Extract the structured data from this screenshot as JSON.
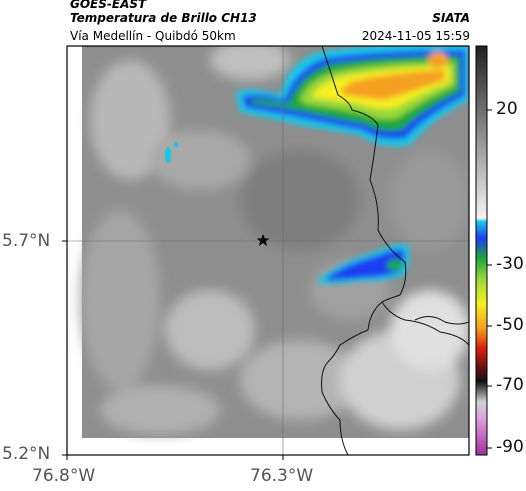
{
  "header": {
    "source": "GOES-EAST",
    "product": "Temperatura de Brillo CH13",
    "region": "Vía Medellín - Quibdó 50km",
    "organization": "SIATA",
    "datetime": "2024-11-05 15:59"
  },
  "map": {
    "latitude_labels": [
      "5.7°N",
      "5.2°N"
    ],
    "longitude_labels": [
      "76.8°W",
      "76.3°W"
    ],
    "marker": "star-marker"
  },
  "colorbar": {
    "tick_labels": [
      "20",
      "-30",
      "-50",
      "-70",
      "-90"
    ],
    "colors": {
      "warm_low": "#f2f2f2",
      "warm_high": "#2a2a2a",
      "cyan": "#16c8e8",
      "blue": "#1e3cf0",
      "green": "#1ea83a",
      "yellow": "#f6f020",
      "orange": "#f5a020",
      "red": "#d81e10",
      "black": "#101010",
      "magenta": "#c040c0"
    }
  }
}
